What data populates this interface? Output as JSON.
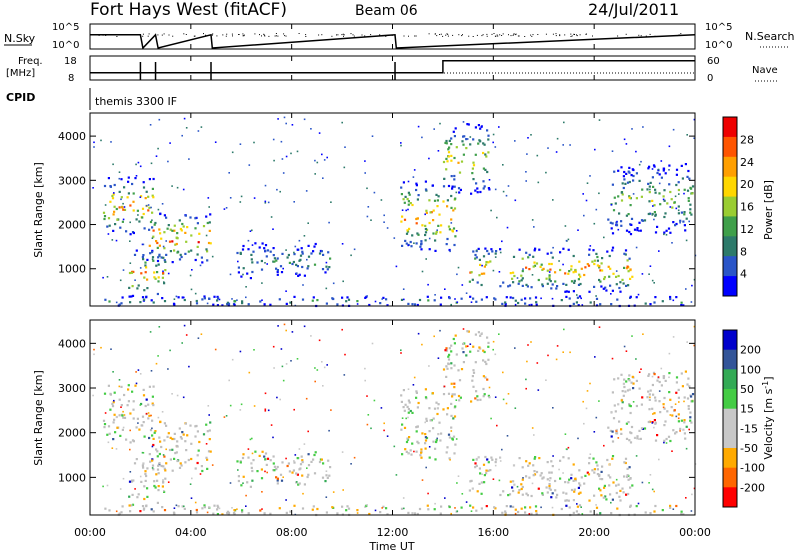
{
  "header": {
    "station": "Fort Hays West (fitACF)",
    "beam": "Beam 06",
    "date": "24/Jul/2011"
  },
  "top_panels": {
    "nsky_label": "N.Sky",
    "nsearch_label": "N.Search",
    "noise_ticks": [
      "10^5",
      "10^0"
    ],
    "freq_label": "Freq.",
    "freq_unit": "[MHz]",
    "freq_ticks": [
      "18",
      "8"
    ],
    "nave_label": "Nave",
    "nave_ticks": [
      "60",
      "0"
    ],
    "cpid_label": "CPID",
    "cpid_value": "themis 3300 IF"
  },
  "colors": {
    "power_scale": [
      "#0000ff",
      "#2a55c8",
      "#2d7a6a",
      "#3f9f4a",
      "#9acd32",
      "#ffd700",
      "#ff9f00",
      "#ff5500",
      "#ee0000"
    ],
    "velocity_scale": [
      "#ff0000",
      "#ff6600",
      "#ffaa00",
      "#c8c8c8",
      "#c8c8c8",
      "#44cc44",
      "#33aa55",
      "#335599",
      "#0000cc"
    ],
    "ground_scatter": "#bebebe"
  },
  "chart_data": [
    {
      "type": "line",
      "title": "Fort Hays West (fitACF) Beam 06 24/Jul/2011",
      "series": [
        {
          "name": "N.Sky",
          "x": [
            0,
            0.05,
            2,
            2.1,
            2.6,
            2.7,
            4.8,
            4.85,
            12.1,
            12.15,
            24
          ],
          "y": [
            1000.0,
            1000.0,
            1000.0,
            1,
            1000.0,
            1,
            1000.0,
            1,
            1000.0,
            1,
            1000.0
          ]
        }
      ],
      "ylabel": "N.Sky",
      "ylim": [
        1,
        100000
      ],
      "log": true
    },
    {
      "type": "line",
      "series": [
        {
          "name": "Freq.",
          "x": [
            0,
            1.9,
            1.9,
            14.0,
            14.0,
            24
          ],
          "y": [
            11,
            11,
            11,
            11,
            16,
            16
          ]
        },
        {
          "name": "Nave",
          "x": [
            0,
            24
          ],
          "y": [
            20,
            20
          ]
        }
      ],
      "ylabel": "Freq. [MHz]",
      "ylim": [
        8,
        18
      ],
      "y2lim": [
        0,
        60
      ]
    },
    {
      "type": "heatmap",
      "panel": "power",
      "x_ticks": [
        "00:00",
        "04:00",
        "08:00",
        "12:00",
        "16:00",
        "20:00",
        "00:00"
      ],
      "xlim": [
        0,
        24
      ],
      "ylabel": "Slant Range [km]",
      "ylim": [
        180,
        4500
      ],
      "y_ticks": [
        "1000",
        "2000",
        "3000",
        "4000"
      ],
      "colorbar_label": "Power [dB]",
      "colorbar_ticks": [
        "4",
        "8",
        "12",
        "16",
        "20",
        "24",
        "28"
      ],
      "clim": [
        0,
        30
      ],
      "regions": [
        {
          "t": [
            0.5,
            2.5
          ],
          "r": [
            1800,
            3100
          ],
          "peak_db": 26
        },
        {
          "t": [
            2.2,
            4.8
          ],
          "r": [
            1150,
            2300
          ],
          "peak_db": 28
        },
        {
          "t": [
            1.5,
            3.0
          ],
          "r": [
            300,
            1500
          ],
          "peak_db": 24
        },
        {
          "t": [
            5.8,
            9.5
          ],
          "r": [
            800,
            1600
          ],
          "peak_db": 12
        },
        {
          "t": [
            12.3,
            14.5
          ],
          "r": [
            1400,
            3000
          ],
          "peak_db": 26
        },
        {
          "t": [
            14.0,
            15.8
          ],
          "r": [
            2700,
            4300
          ],
          "peak_db": 20
        },
        {
          "t": [
            15.0,
            21.5
          ],
          "r": [
            500,
            1500
          ],
          "peak_db": 24
        },
        {
          "t": [
            20.5,
            23.9
          ],
          "r": [
            1800,
            3400
          ],
          "peak_db": 16
        },
        {
          "t": [
            0.5,
            23.5
          ],
          "r": [
            180,
            400
          ],
          "peak_db": 12
        }
      ]
    },
    {
      "type": "heatmap",
      "panel": "velocity",
      "x_ticks": [
        "00:00",
        "04:00",
        "08:00",
        "12:00",
        "16:00",
        "20:00",
        "00:00"
      ],
      "xlim": [
        0,
        24
      ],
      "xlabel": "Time UT",
      "ylabel": "Slant Range [km]",
      "ylim": [
        180,
        4500
      ],
      "y_ticks": [
        "1000",
        "2000",
        "3000",
        "4000"
      ],
      "colorbar_label": "Velocity [m s-1]",
      "colorbar_ticks": [
        "200",
        "100",
        "50",
        "15",
        "-15",
        "-50",
        "-100",
        "-200"
      ],
      "clim": [
        -250,
        250
      ]
    }
  ],
  "axes": {
    "x_ticks": [
      "00:00",
      "04:00",
      "08:00",
      "12:00",
      "16:00",
      "20:00",
      "00:00"
    ],
    "xlabel": "Time UT",
    "ylabel": "Slant Range [km]",
    "y_ticks": [
      "1000",
      "2000",
      "3000",
      "4000"
    ],
    "power_cb_label": "Power [dB]",
    "power_cb_ticks": [
      "4",
      "8",
      "12",
      "16",
      "20",
      "24",
      "28"
    ],
    "velocity_cb_label": "Velocity [m s",
    "velocity_cb_sup": "-1",
    "velocity_cb_close": "]",
    "velocity_cb_ticks": [
      "200",
      "100",
      "50",
      "15",
      "-15",
      "-50",
      "-100",
      "-200"
    ]
  }
}
